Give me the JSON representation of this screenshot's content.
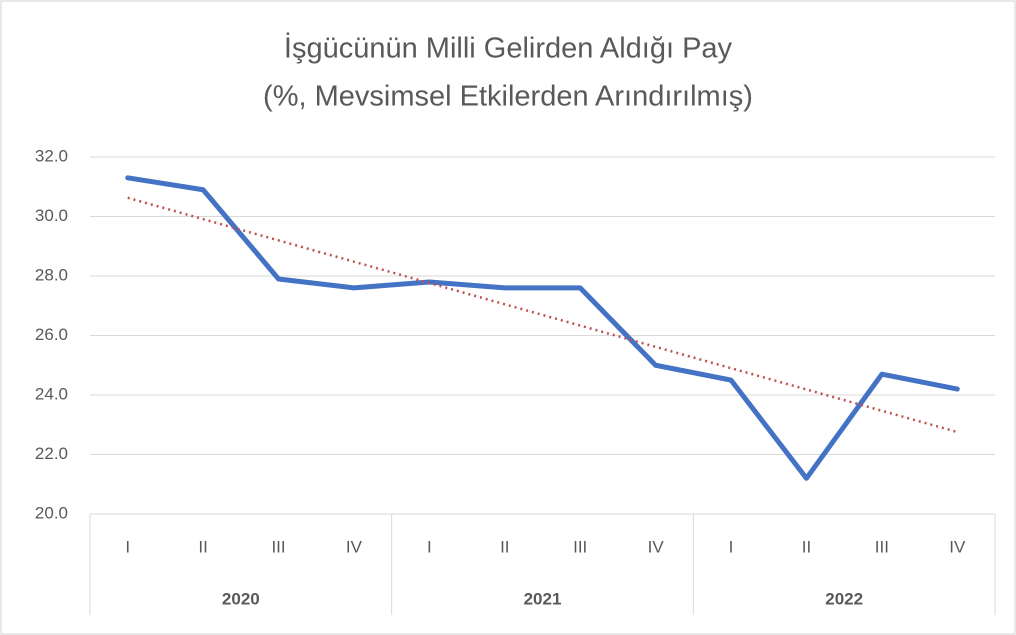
{
  "chart_data": {
    "type": "line",
    "title": [
      "İşgücünün Milli Gelirden Aldığı Pay",
      "(%, Mevsimsel Etkilerden Arındırılmış)"
    ],
    "categories": [
      "I",
      "II",
      "III",
      "IV",
      "I",
      "II",
      "III",
      "IV",
      "I",
      "II",
      "III",
      "IV"
    ],
    "x_groups": [
      "2020",
      "2021",
      "2022"
    ],
    "series": [
      {
        "color": "#4472c4",
        "values": [
          31.3,
          30.9,
          27.9,
          27.6,
          27.8,
          27.6,
          27.6,
          25.0,
          24.5,
          21.2,
          24.7,
          24.2
        ]
      }
    ],
    "trendline": {
      "type": "linear",
      "color": "#c0504d"
    },
    "ylim": [
      20,
      32
    ],
    "yticks": [
      {
        "value": 20,
        "label": "20.0"
      },
      {
        "value": 22,
        "label": "22.0"
      },
      {
        "value": 24,
        "label": "24.0"
      },
      {
        "value": 26,
        "label": "26.0"
      },
      {
        "value": 28,
        "label": "28.0"
      },
      {
        "value": 30,
        "label": "30.0"
      },
      {
        "value": 32,
        "label": "32.0"
      }
    ],
    "grid": true
  }
}
